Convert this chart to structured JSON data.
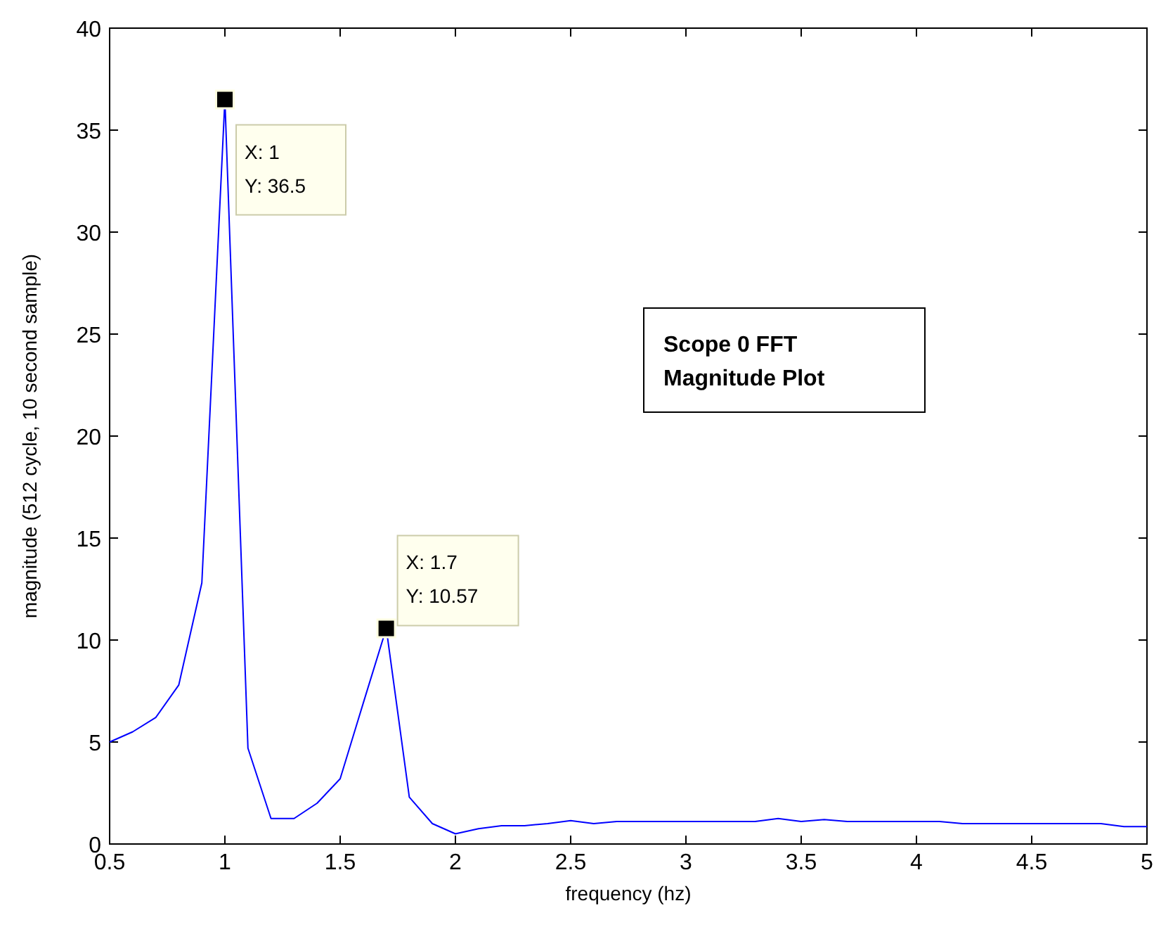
{
  "chart_data": {
    "type": "line",
    "xlabel": "frequency (hz)",
    "ylabel": "magnitude  (512 cycle, 10 second sample)",
    "x": [
      0.5,
      0.6,
      0.7,
      0.8,
      0.9,
      1.0,
      1.1,
      1.2,
      1.3,
      1.4,
      1.5,
      1.6,
      1.7,
      1.8,
      1.9,
      2.0,
      2.1,
      2.2,
      2.3,
      2.4,
      2.5,
      2.6,
      2.7,
      2.8,
      2.9,
      3.0,
      3.1,
      3.2,
      3.3,
      3.4,
      3.5,
      3.6,
      3.7,
      3.8,
      3.9,
      4.0,
      4.1,
      4.2,
      4.3,
      4.4,
      4.5,
      4.6,
      4.7,
      4.8,
      4.9,
      5.0
    ],
    "series": [
      {
        "color": "#0000ff",
        "values": [
          5.0,
          5.5,
          6.2,
          7.8,
          12.8,
          36.5,
          4.7,
          1.25,
          1.25,
          2.0,
          3.2,
          6.9,
          10.57,
          2.3,
          1.0,
          0.5,
          0.75,
          0.9,
          0.9,
          1.0,
          1.15,
          1.0,
          1.1,
          1.1,
          1.1,
          1.1,
          1.1,
          1.1,
          1.1,
          1.25,
          1.1,
          1.2,
          1.1,
          1.1,
          1.1,
          1.1,
          1.1,
          1.0,
          1.0,
          1.0,
          1.0,
          1.0,
          1.0,
          1.0,
          0.85,
          0.85
        ]
      }
    ],
    "xlim": [
      0.5,
      5
    ],
    "xticks": [
      0.5,
      1,
      1.5,
      2,
      2.5,
      3,
      3.5,
      4,
      4.5,
      5
    ],
    "ylim": [
      0,
      40
    ],
    "yticks": [
      0,
      5,
      10,
      15,
      20,
      25,
      30,
      35,
      40
    ],
    "grid": false,
    "marker": "none",
    "line_style": "solid",
    "annotations": [
      {
        "text": "X: 1\nY: 36.5",
        "x": 1,
        "y": 36.5
      },
      {
        "text": "X: 1.7\nY: 10.57",
        "x": 1.7,
        "y": 10.57
      },
      "Scope 0 FFT\nMagnitude Plot"
    ]
  }
}
